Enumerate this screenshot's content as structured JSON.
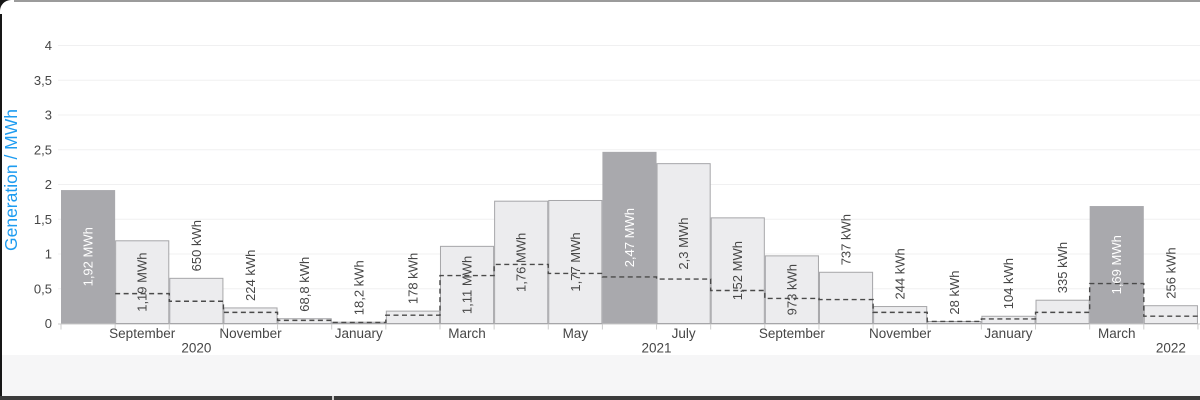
{
  "colors": {
    "accent_blue": "#1e9cf0",
    "bar_light_fill": "#ececee",
    "bar_light_border": "#a6a6a9",
    "bar_dark_fill": "#a9a9ad",
    "dashed_line": "#4a4a4a",
    "grid_line": "#f0f0f1",
    "axis_line": "#c8c8c8",
    "tick_mark": "#cccccc",
    "text_dark": "#464646",
    "label_on_dark": "#ffffff",
    "bottom_bar": "#3b3b3b"
  },
  "chart_data": {
    "type": "bar",
    "title": "",
    "ylabel": "Generation / MWh",
    "xlabel": "",
    "ylim": [
      0,
      4
    ],
    "ytick_step": 0.5,
    "ytick_labels": [
      "0",
      "0,5",
      "1",
      "1,5",
      "2",
      "2,5",
      "3",
      "3,5",
      "4"
    ],
    "grid": true,
    "legend": "none",
    "decimal_separator": ",",
    "bars": {
      "count": 21,
      "value_labels": [
        "1,92 MWh",
        "1,19 MWh",
        "650 kWh",
        "224 kWh",
        "68,8 kWh",
        "18,2 kWh",
        "178 kWh",
        "1,11 MWh",
        "1,76 MWh",
        "1,77 MWh",
        "2,47 MWh",
        "2,3 MWh",
        "1,52 MWh",
        "973 kWh",
        "737 kWh",
        "244 kWh",
        "28 kWh",
        "104 kWh",
        "335 kWh",
        "1,69 MWh",
        "256 kWh"
      ],
      "values_mwh": [
        1.92,
        1.19,
        0.65,
        0.224,
        0.0688,
        0.0182,
        0.178,
        1.11,
        1.76,
        1.77,
        2.47,
        2.3,
        1.52,
        0.973,
        0.737,
        0.244,
        0.028,
        0.104,
        0.335,
        1.69,
        0.256
      ],
      "highlighted_indices": [
        0,
        10,
        19
      ]
    },
    "reference_dashed_step": {
      "values_mwh": [
        null,
        0.43,
        0.32,
        0.16,
        0.045,
        0.015,
        0.12,
        0.69,
        0.85,
        0.72,
        0.67,
        0.64,
        0.475,
        0.36,
        0.345,
        0.16,
        0.03,
        0.065,
        0.16,
        0.575,
        0.105
      ]
    },
    "x_axis": {
      "month_labels": [
        {
          "label": "September",
          "bar": 1
        },
        {
          "label": "November",
          "bar": 3
        },
        {
          "label": "January",
          "bar": 5
        },
        {
          "label": "March",
          "bar": 7
        },
        {
          "label": "May",
          "bar": 9
        },
        {
          "label": "July",
          "bar": 11
        },
        {
          "label": "September",
          "bar": 13
        },
        {
          "label": "November",
          "bar": 15
        },
        {
          "label": "January",
          "bar": 17
        },
        {
          "label": "March",
          "bar": 19
        }
      ],
      "year_labels": [
        {
          "label": "2020",
          "bar_position": 2
        },
        {
          "label": "2021",
          "bar_position": 10.5
        },
        {
          "label": "2022",
          "bar_position": 20
        }
      ]
    }
  }
}
